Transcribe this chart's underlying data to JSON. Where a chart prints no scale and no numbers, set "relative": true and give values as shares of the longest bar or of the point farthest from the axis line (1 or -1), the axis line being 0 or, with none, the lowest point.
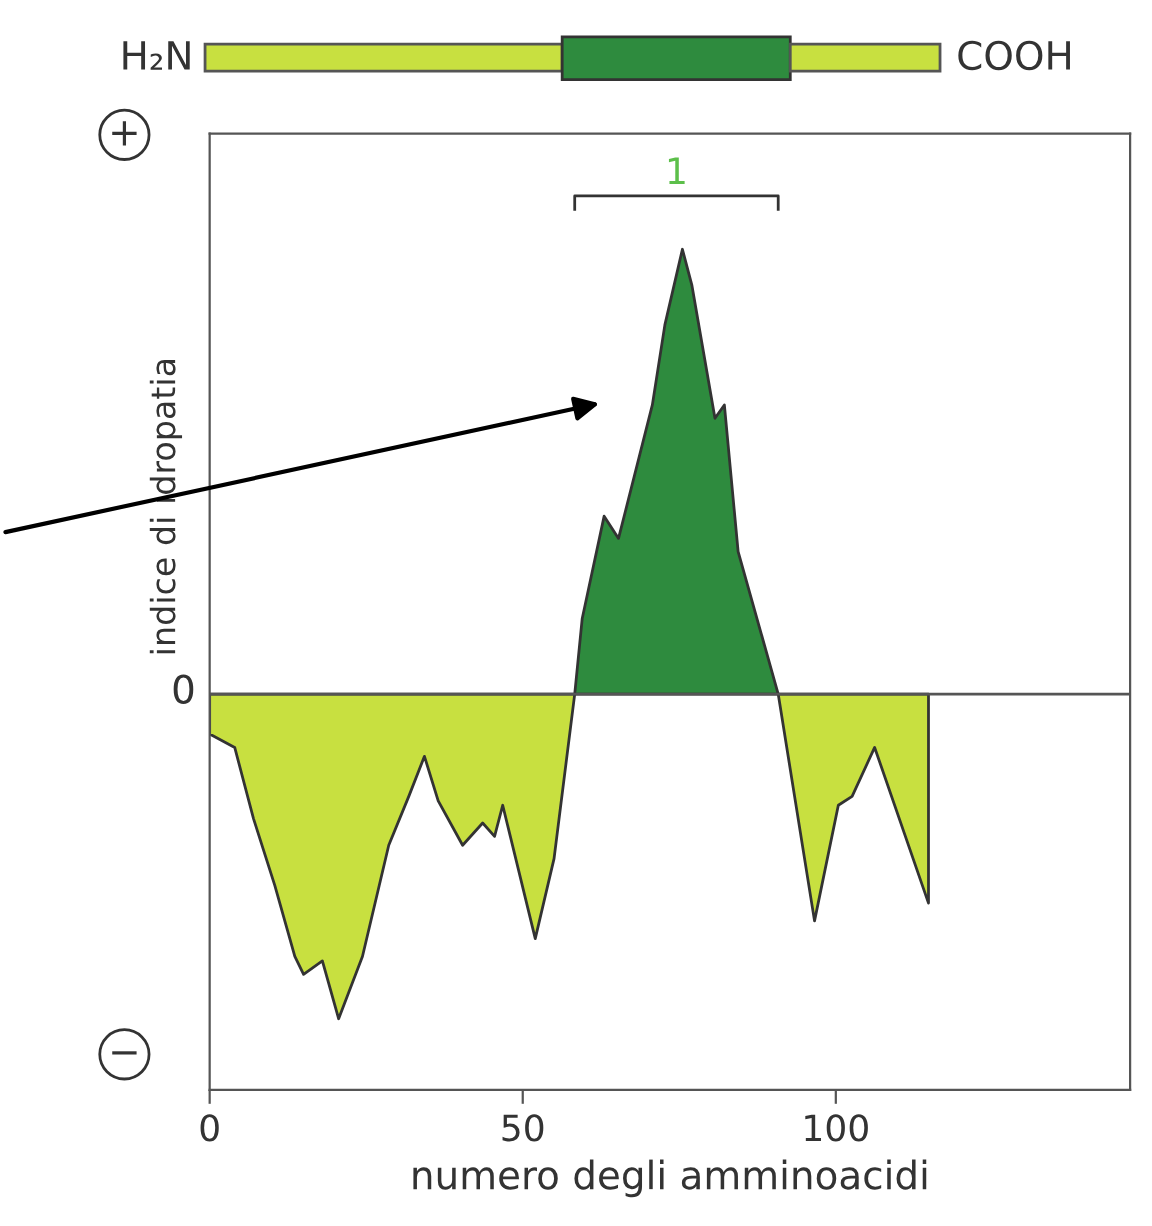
{
  "chart_data": {
    "type": "area",
    "relative": true,
    "xlabel": "numero degli amminoacidi",
    "ylabel": "indice di idropatia",
    "xlim": [
      0,
      147
    ],
    "xticks": [
      0,
      50,
      100
    ],
    "grid": false,
    "series": [
      {
        "color": "#c8e040",
        "x": [
          0,
          4,
          7,
          10.4,
          13.6,
          15,
          18,
          20.6,
          24.4,
          28.6,
          31.8,
          34.3,
          36.5,
          40.4,
          43.6,
          45.5,
          46.8,
          52,
          55,
          58.3
        ],
        "values": [
          -0.09,
          -0.12,
          -0.28,
          -0.43,
          -0.59,
          -0.63,
          -0.6,
          -0.73,
          -0.59,
          -0.34,
          -0.23,
          -0.14,
          -0.24,
          -0.34,
          -0.29,
          -0.32,
          -0.25,
          -0.55,
          -0.37,
          0
        ]
      },
      {
        "color": "#2e8b3e",
        "x": [
          58.3,
          59.5,
          63,
          65.3,
          70.7,
          72.7,
          75.5,
          77,
          80.7,
          82.2,
          84.4,
          90.8
        ],
        "values": [
          0,
          0.17,
          0.4,
          0.35,
          0.65,
          0.83,
          1,
          0.92,
          0.62,
          0.65,
          0.32,
          0
        ]
      },
      {
        "color": "#c8e040",
        "x": [
          90.8,
          96.6,
          100.4,
          102.6,
          106.2,
          114.8,
          114.8
        ],
        "values": [
          0,
          -0.51,
          -0.25,
          -0.23,
          -0.12,
          -0.47,
          0
        ]
      }
    ],
    "annotations": [
      "H₂N",
      "COOH",
      "+",
      "−",
      "0",
      "1"
    ]
  }
}
